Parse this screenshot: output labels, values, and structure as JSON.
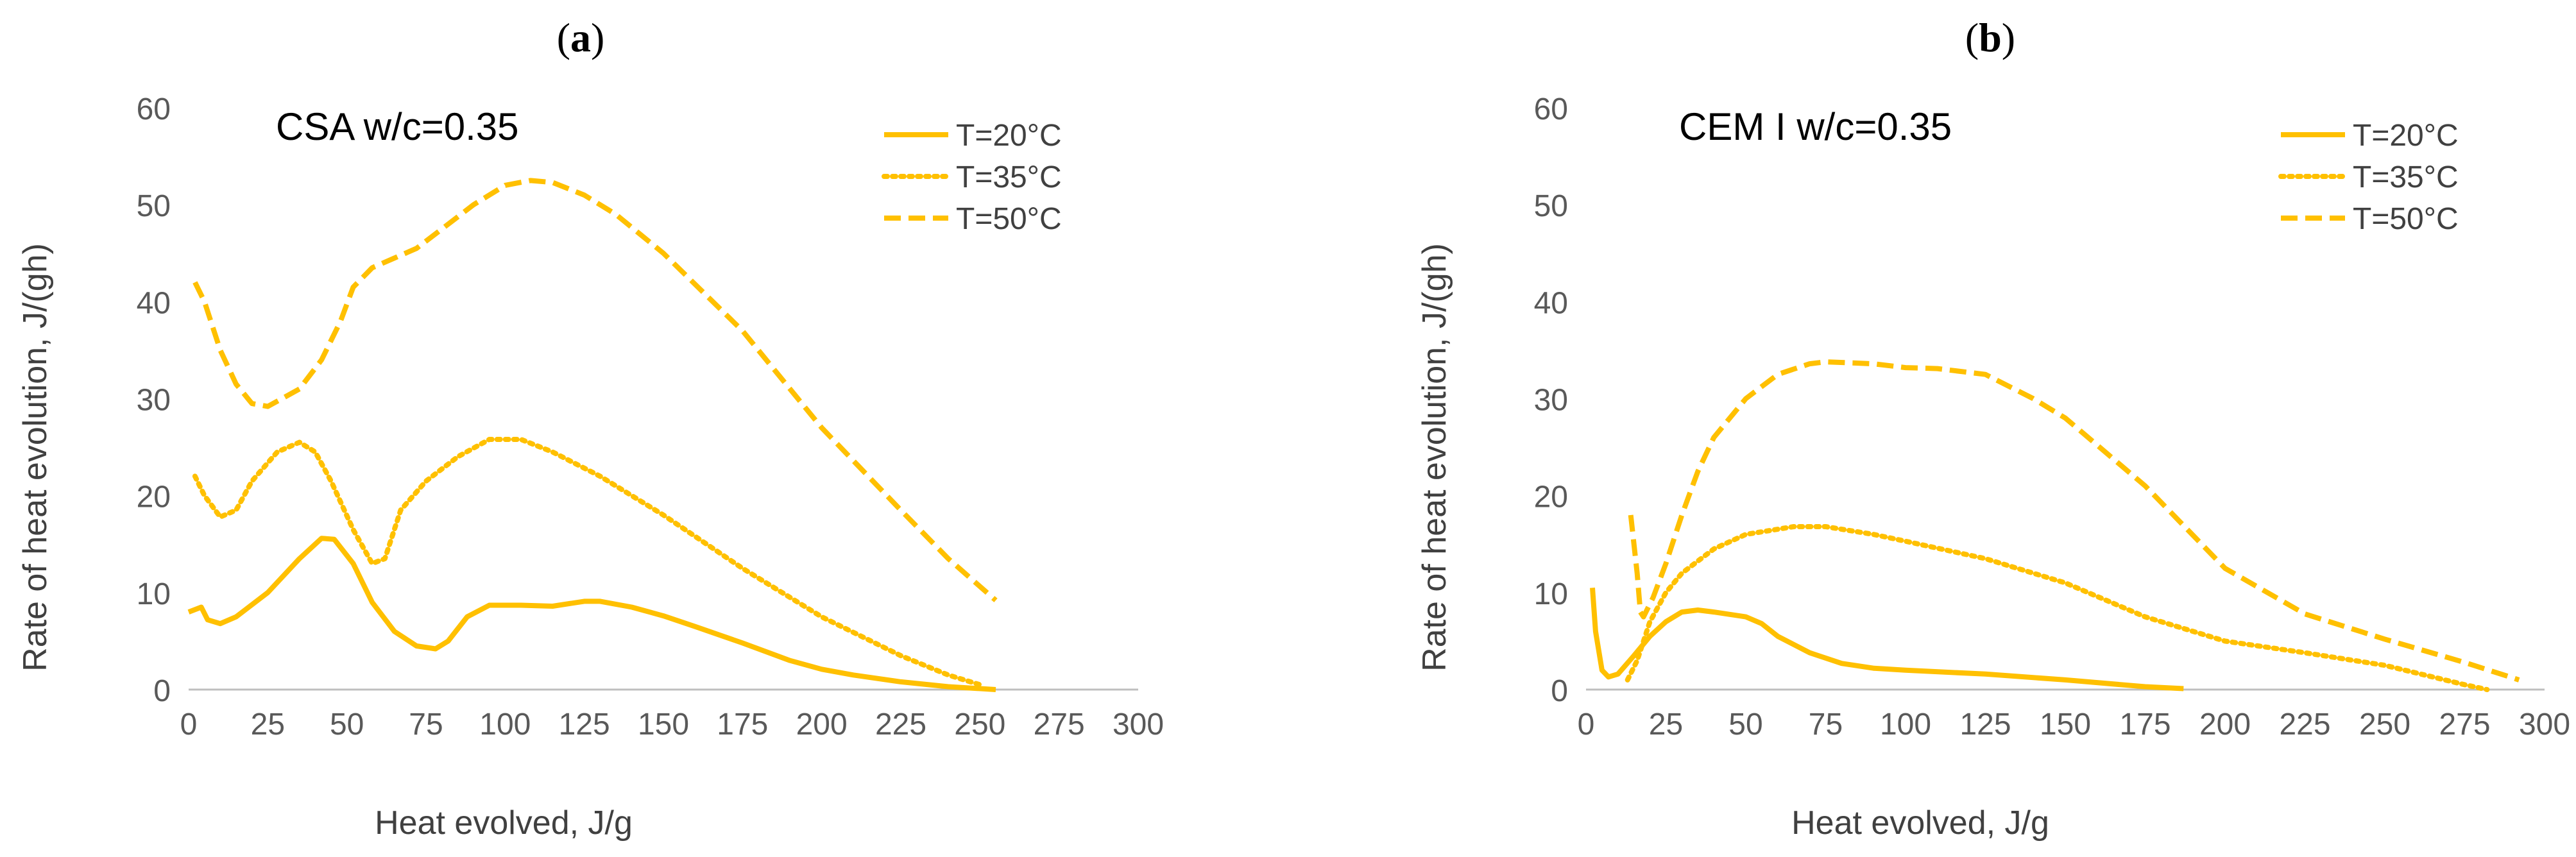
{
  "figure": {
    "colors": {
      "series": "#FFC000",
      "axis": "#BFBFBF",
      "text": "#595959"
    }
  },
  "chart_data": [
    {
      "type": "line",
      "panel_label": "(a)",
      "panel_label_letter": "a",
      "title": "CSA w/c=0.35",
      "xlabel": "Heat evolved, J/g",
      "ylabel": "Rate of heat evolution, J/(gh)",
      "xlim": [
        0,
        300
      ],
      "ylim": [
        0,
        60
      ],
      "xticks": [
        "0",
        "25",
        "50",
        "75",
        "100",
        "125",
        "150",
        "175",
        "200",
        "225",
        "250",
        "275",
        "300"
      ],
      "yticks": [
        "0",
        "10",
        "20",
        "30",
        "40",
        "50",
        "60"
      ],
      "grid": false,
      "legend_position": "top-right",
      "series": [
        {
          "name": "T=20°C",
          "style": "solid",
          "points": [
            [
              0,
              8
            ],
            [
              4,
              8.5
            ],
            [
              6,
              7.2
            ],
            [
              10,
              6.8
            ],
            [
              15,
              7.5
            ],
            [
              25,
              10
            ],
            [
              35,
              13.5
            ],
            [
              42,
              15.6
            ],
            [
              46,
              15.5
            ],
            [
              52,
              13
            ],
            [
              58,
              9
            ],
            [
              65,
              6
            ],
            [
              72,
              4.5
            ],
            [
              78,
              4.2
            ],
            [
              82,
              5
            ],
            [
              88,
              7.5
            ],
            [
              95,
              8.7
            ],
            [
              105,
              8.7
            ],
            [
              115,
              8.6
            ],
            [
              125,
              9.1
            ],
            [
              130,
              9.1
            ],
            [
              140,
              8.5
            ],
            [
              150,
              7.6
            ],
            [
              160,
              6.5
            ],
            [
              175,
              4.8
            ],
            [
              190,
              3
            ],
            [
              200,
              2.1
            ],
            [
              210,
              1.5
            ],
            [
              225,
              0.8
            ],
            [
              240,
              0.3
            ],
            [
              255,
              0
            ]
          ]
        },
        {
          "name": "T=35°C",
          "style": "dotted",
          "points": [
            [
              2,
              22
            ],
            [
              5,
              20
            ],
            [
              10,
              17.8
            ],
            [
              15,
              18.5
            ],
            [
              20,
              21.5
            ],
            [
              28,
              24.5
            ],
            [
              35,
              25.5
            ],
            [
              40,
              24.5
            ],
            [
              45,
              21.5
            ],
            [
              52,
              16.5
            ],
            [
              58,
              13
            ],
            [
              62,
              13.5
            ],
            [
              67,
              18.5
            ],
            [
              75,
              21.5
            ],
            [
              85,
              24
            ],
            [
              95,
              25.8
            ],
            [
              105,
              25.8
            ],
            [
              115,
              24.5
            ],
            [
              130,
              22
            ],
            [
              150,
              18
            ],
            [
              175,
              12.5
            ],
            [
              200,
              7.5
            ],
            [
              225,
              3.5
            ],
            [
              240,
              1.5
            ],
            [
              250,
              0.5
            ]
          ]
        },
        {
          "name": "T=50°C",
          "style": "dashed",
          "points": [
            [
              2,
              42
            ],
            [
              5,
              40
            ],
            [
              10,
              35
            ],
            [
              15,
              31.5
            ],
            [
              20,
              29.5
            ],
            [
              25,
              29.2
            ],
            [
              35,
              31
            ],
            [
              42,
              34
            ],
            [
              48,
              38
            ],
            [
              52,
              41.5
            ],
            [
              58,
              43.5
            ],
            [
              65,
              44.5
            ],
            [
              72,
              45.5
            ],
            [
              80,
              47.5
            ],
            [
              90,
              50
            ],
            [
              100,
              52
            ],
            [
              108,
              52.5
            ],
            [
              115,
              52.3
            ],
            [
              125,
              51
            ],
            [
              135,
              49
            ],
            [
              150,
              45
            ],
            [
              175,
              37
            ],
            [
              200,
              27
            ],
            [
              225,
              18.5
            ],
            [
              240,
              13.5
            ],
            [
              255,
              9.2
            ]
          ]
        }
      ]
    },
    {
      "type": "line",
      "panel_label": "(b)",
      "panel_label_letter": "b",
      "title": "CEM I w/c=0.35",
      "xlabel": "Heat evolved, J/g",
      "ylabel": "Rate of heat evolution, J/(gh)",
      "xlim": [
        0,
        300
      ],
      "ylim": [
        0,
        60
      ],
      "xticks": [
        "0",
        "25",
        "50",
        "75",
        "100",
        "125",
        "150",
        "175",
        "200",
        "225",
        "250",
        "275",
        "300"
      ],
      "yticks": [
        "0",
        "10",
        "20",
        "30",
        "40",
        "50",
        "60"
      ],
      "grid": false,
      "legend_position": "top-right",
      "series": [
        {
          "name": "T=20°C",
          "style": "solid",
          "points": [
            [
              2,
              10.5
            ],
            [
              3,
              6
            ],
            [
              5,
              2
            ],
            [
              7,
              1.3
            ],
            [
              10,
              1.6
            ],
            [
              15,
              3.5
            ],
            [
              20,
              5.5
            ],
            [
              25,
              7
            ],
            [
              30,
              8
            ],
            [
              35,
              8.2
            ],
            [
              40,
              8
            ],
            [
              50,
              7.5
            ],
            [
              55,
              6.8
            ],
            [
              60,
              5.5
            ],
            [
              70,
              3.8
            ],
            [
              80,
              2.7
            ],
            [
              90,
              2.2
            ],
            [
              100,
              2
            ],
            [
              125,
              1.6
            ],
            [
              150,
              1
            ],
            [
              175,
              0.3
            ],
            [
              187,
              0.1
            ]
          ]
        },
        {
          "name": "T=35°C",
          "style": "dotted",
          "points": [
            [
              13,
              1
            ],
            [
              16,
              3
            ],
            [
              20,
              7
            ],
            [
              25,
              10
            ],
            [
              30,
              12
            ],
            [
              40,
              14.5
            ],
            [
              50,
              16
            ],
            [
              65,
              16.8
            ],
            [
              75,
              16.8
            ],
            [
              90,
              16
            ],
            [
              100,
              15.3
            ],
            [
              125,
              13.5
            ],
            [
              150,
              11
            ],
            [
              175,
              7.5
            ],
            [
              200,
              5
            ],
            [
              225,
              3.8
            ],
            [
              250,
              2.5
            ],
            [
              275,
              0.5
            ],
            [
              282,
              0
            ]
          ]
        },
        {
          "name": "T=50°C",
          "style": "dashed",
          "points": [
            [
              14,
              18
            ],
            [
              16,
              12
            ],
            [
              17,
              8
            ],
            [
              18,
              7.5
            ],
            [
              21,
              9.5
            ],
            [
              25,
              13
            ],
            [
              30,
              18
            ],
            [
              35,
              22.5
            ],
            [
              40,
              26
            ],
            [
              50,
              30
            ],
            [
              60,
              32.5
            ],
            [
              70,
              33.6
            ],
            [
              75,
              33.8
            ],
            [
              90,
              33.6
            ],
            [
              100,
              33.2
            ],
            [
              110,
              33.1
            ],
            [
              125,
              32.5
            ],
            [
              140,
              30
            ],
            [
              150,
              28
            ],
            [
              175,
              21
            ],
            [
              200,
              12.5
            ],
            [
              225,
              7.8
            ],
            [
              250,
              5.2
            ],
            [
              275,
              2.8
            ],
            [
              292,
              1
            ]
          ]
        }
      ]
    }
  ]
}
